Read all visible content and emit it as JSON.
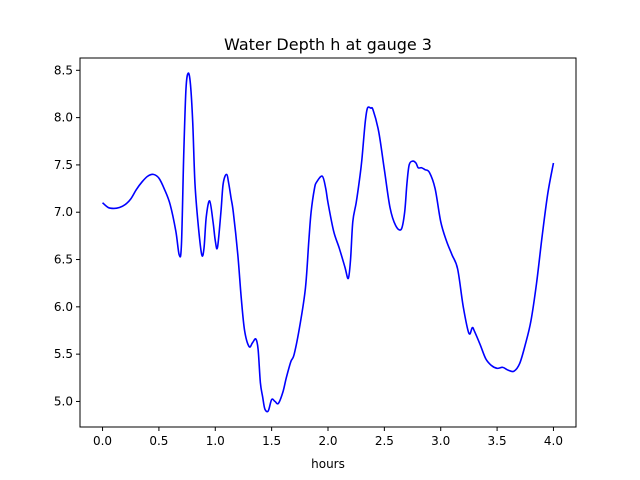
{
  "chart_data": {
    "type": "line",
    "title": "Water Depth h at gauge 3",
    "xlabel": "hours",
    "ylabel": "",
    "xlim": [
      -0.2,
      4.2
    ],
    "ylim": [
      4.73,
      8.63
    ],
    "x_ticks": [
      0.0,
      0.5,
      1.0,
      1.5,
      2.0,
      2.5,
      3.0,
      3.5,
      4.0
    ],
    "x_tick_labels": [
      "0.0",
      "0.5",
      "1.0",
      "1.5",
      "2.0",
      "2.5",
      "3.0",
      "3.5",
      "4.0"
    ],
    "y_ticks": [
      5.0,
      5.5,
      6.0,
      6.5,
      7.0,
      7.5,
      8.0,
      8.5
    ],
    "y_tick_labels": [
      "5.0",
      "5.5",
      "6.0",
      "6.5",
      "7.0",
      "7.5",
      "8.0",
      "8.5"
    ],
    "grid": false,
    "line_color": "#0000ff",
    "series": [
      {
        "name": "",
        "x": [
          0.0,
          0.05,
          0.1,
          0.15,
          0.2,
          0.25,
          0.3,
          0.35,
          0.4,
          0.45,
          0.5,
          0.55,
          0.6,
          0.65,
          0.68,
          0.7,
          0.72,
          0.74,
          0.76,
          0.78,
          0.8,
          0.82,
          0.85,
          0.88,
          0.9,
          0.92,
          0.95,
          0.98,
          1.0,
          1.02,
          1.05,
          1.07,
          1.1,
          1.12,
          1.14,
          1.16,
          1.2,
          1.23,
          1.26,
          1.3,
          1.33,
          1.36,
          1.38,
          1.4,
          1.42,
          1.44,
          1.47,
          1.5,
          1.53,
          1.56,
          1.6,
          1.63,
          1.67,
          1.7,
          1.75,
          1.8,
          1.83,
          1.85,
          1.88,
          1.9,
          1.95,
          1.98,
          2.0,
          2.05,
          2.1,
          2.15,
          2.18,
          2.2,
          2.22,
          2.25,
          2.28,
          2.3,
          2.33,
          2.35,
          2.38,
          2.4,
          2.45,
          2.5,
          2.55,
          2.6,
          2.65,
          2.68,
          2.7,
          2.72,
          2.75,
          2.78,
          2.8,
          2.83,
          2.86,
          2.9,
          2.95,
          3.0,
          3.05,
          3.1,
          3.15,
          3.2,
          3.25,
          3.28,
          3.3,
          3.35,
          3.4,
          3.45,
          3.5,
          3.55,
          3.6,
          3.65,
          3.7,
          3.75,
          3.8,
          3.85,
          3.9,
          3.95,
          4.0
        ],
        "y": [
          7.1,
          7.05,
          7.04,
          7.05,
          7.08,
          7.14,
          7.24,
          7.32,
          7.38,
          7.4,
          7.36,
          7.24,
          7.08,
          6.8,
          6.55,
          6.66,
          7.6,
          8.3,
          8.47,
          8.35,
          7.95,
          7.3,
          6.85,
          6.55,
          6.62,
          6.95,
          7.12,
          6.9,
          6.7,
          6.63,
          7.0,
          7.3,
          7.4,
          7.3,
          7.15,
          7.0,
          6.55,
          6.1,
          5.75,
          5.58,
          5.62,
          5.66,
          5.55,
          5.2,
          5.05,
          4.92,
          4.9,
          5.02,
          5.0,
          4.98,
          5.1,
          5.25,
          5.42,
          5.5,
          5.8,
          6.2,
          6.7,
          7.0,
          7.25,
          7.32,
          7.38,
          7.25,
          7.1,
          6.8,
          6.62,
          6.42,
          6.3,
          6.5,
          6.9,
          7.1,
          7.35,
          7.55,
          7.95,
          8.1,
          8.1,
          8.08,
          7.85,
          7.45,
          7.05,
          6.86,
          6.82,
          7.0,
          7.3,
          7.5,
          7.54,
          7.52,
          7.47,
          7.47,
          7.45,
          7.42,
          7.25,
          6.9,
          6.7,
          6.55,
          6.4,
          6.0,
          5.72,
          5.78,
          5.74,
          5.6,
          5.45,
          5.38,
          5.35,
          5.36,
          5.33,
          5.32,
          5.4,
          5.6,
          5.85,
          6.25,
          6.75,
          7.2,
          7.52
        ]
      }
    ]
  }
}
